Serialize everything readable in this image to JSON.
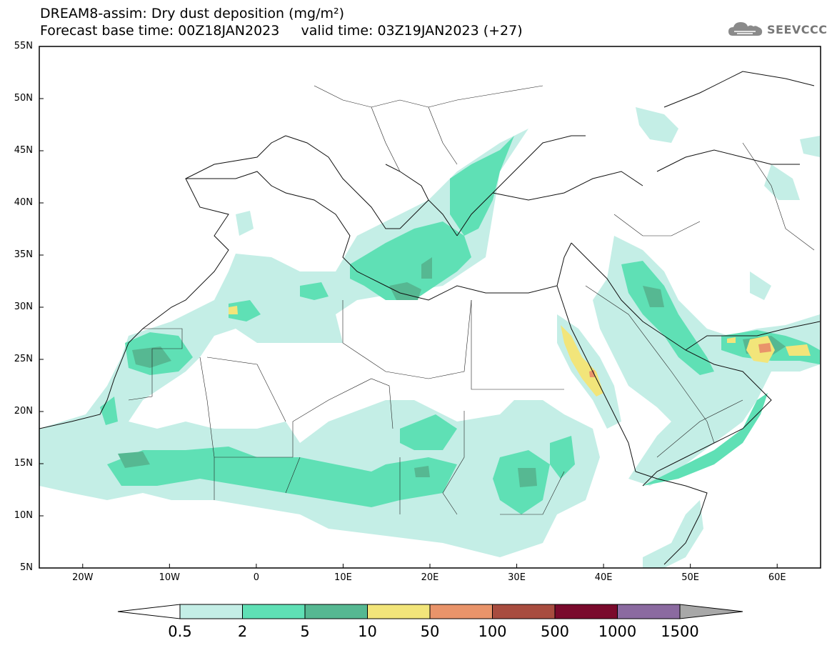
{
  "header": {
    "title_line1": "DREAM8-assim: Dry dust deposition (mg/m²)",
    "title_line2": "Forecast base time: 00Z18JAN2023     valid time: 03Z19JAN2023 (+27)"
  },
  "logo": {
    "icon": "cloud-logo-icon",
    "text": "SEEVCCC"
  },
  "map": {
    "lon_range": [
      -25,
      65
    ],
    "lat_range": [
      5,
      55
    ],
    "lat_labels": [
      "55N",
      "50N",
      "45N",
      "40N",
      "35N",
      "30N",
      "25N",
      "20N",
      "15N",
      "10N",
      "5N"
    ],
    "lon_labels": [
      "20W",
      "10W",
      "0",
      "10E",
      "20E",
      "30E",
      "40E",
      "50E",
      "60E"
    ]
  },
  "colorbar": {
    "labels": [
      "0.5",
      "2",
      "5",
      "10",
      "50",
      "100",
      "500",
      "1000",
      "1500"
    ],
    "colors": [
      "#c4eee6",
      "#5fe0b5",
      "#56b892",
      "#f2e57a",
      "#e9946a",
      "#a84c3f",
      "#7a0a2c",
      "#8b6aa0"
    ],
    "under_color": "#ffffff",
    "over_color": "#a8a8a8"
  }
}
